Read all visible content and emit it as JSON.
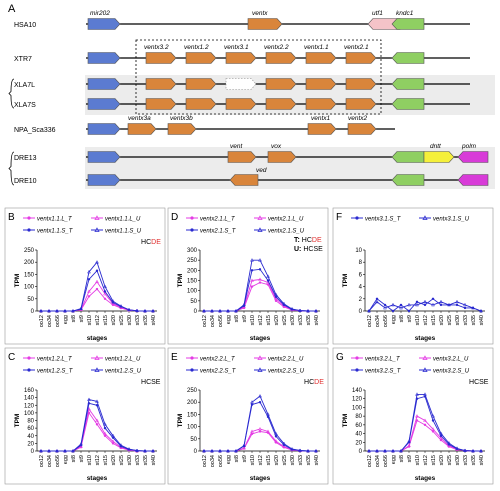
{
  "panel_a": {
    "letter": "A",
    "rows": [
      {
        "label": "HSA10",
        "bracket": false
      },
      {
        "label": "XTR7",
        "bracket": false
      },
      {
        "label": "XLA7L",
        "bracket": true
      },
      {
        "label": "XLA7S",
        "bracket": true
      },
      {
        "label": "NPA_Sca336",
        "bracket": false
      },
      {
        "label": "DRE13",
        "bracket": true
      },
      {
        "label": "DRE10",
        "bracket": true
      }
    ],
    "gene_labels": {
      "mir202": "mir202",
      "ventx": "ventx",
      "utf1": "utf1",
      "kndc1": "kndc1",
      "ventx3_2": "ventx3.2",
      "ventx1_2": "ventx1.2",
      "ventx3_1": "ventx3.1",
      "ventx2_2": "ventx2.2",
      "ventx1_1": "ventx1.1",
      "ventx2_1": "ventx2.1",
      "ventx3a": "ventx3a",
      "ventx3b": "ventx3b",
      "ventx1": "ventx1",
      "ventx2": "ventx2",
      "vent": "vent",
      "vox": "vox",
      "ved": "ved",
      "dntt": "dntt",
      "polm": "polm"
    },
    "colors": {
      "blue": "#5b7bd1",
      "orange": "#d9853b",
      "pink": "#f4c3c8",
      "green": "#8fcf62",
      "yellow": "#f5f03a",
      "magenta": "#d83bd8"
    }
  },
  "common": {
    "ylabel": "TPM",
    "xlabel": "stages",
    "stage_labels": [
      "oo12",
      "oo34",
      "oo56",
      "egg",
      "st8",
      "st9",
      "st10",
      "st12",
      "st15",
      "st20",
      "st25",
      "st30",
      "st33",
      "st35",
      "st40"
    ]
  },
  "chart_data": [
    {
      "type": "line",
      "letter": "B",
      "tag": "HCDE",
      "tag_colors": [
        "#000",
        "#000",
        "#e03030",
        "#e03030"
      ],
      "ylim": [
        0,
        250
      ],
      "yticks": [
        0,
        50,
        100,
        150,
        200,
        250
      ],
      "series": [
        {
          "name": "ventx1.1.L_T",
          "color": "#e43be4",
          "values": [
            0,
            0,
            0,
            0,
            0,
            5,
            60,
            90,
            50,
            25,
            12,
            3,
            1,
            0,
            0
          ]
        },
        {
          "name": "ventx1.1.L_U",
          "color": "#e43be4",
          "values": [
            0,
            0,
            0,
            0,
            0,
            6,
            80,
            120,
            70,
            30,
            15,
            4,
            1,
            0,
            0
          ]
        },
        {
          "name": "ventx1.1.S_T",
          "color": "#2a2ad0",
          "values": [
            0,
            0,
            0,
            0,
            0,
            8,
            130,
            165,
            80,
            35,
            18,
            5,
            1,
            0,
            0
          ]
        },
        {
          "name": "ventx1.1.S_U",
          "color": "#2a2ad0",
          "values": [
            0,
            0,
            0,
            0,
            0,
            10,
            160,
            200,
            100,
            40,
            20,
            5,
            1,
            0,
            0
          ]
        }
      ]
    },
    {
      "type": "line",
      "letter": "D",
      "tag": "",
      "tag_colors": [],
      "ylim": [
        0,
        300
      ],
      "yticks": [
        0,
        50,
        100,
        150,
        200,
        250,
        300
      ],
      "legend_extra": [
        {
          "prefix": "T: ",
          "text": "HCDE",
          "colors": [
            "#000",
            "#000",
            "#e03030",
            "#e03030"
          ]
        },
        {
          "prefix": "U: ",
          "text": "HCSE",
          "colors": [
            "#000",
            "#000",
            "#000",
            "#000"
          ]
        }
      ],
      "series": [
        {
          "name": "ventx2.1.L_T",
          "color": "#e43be4",
          "values": [
            0,
            0,
            0,
            0,
            0,
            15,
            120,
            140,
            130,
            50,
            20,
            5,
            1,
            0,
            0
          ]
        },
        {
          "name": "ventx2.1.L_U",
          "color": "#e43be4",
          "values": [
            0,
            0,
            0,
            0,
            0,
            20,
            150,
            155,
            140,
            60,
            25,
            6,
            2,
            0,
            0
          ]
        },
        {
          "name": "ventx2.1.S_T",
          "color": "#2a2ad0",
          "values": [
            0,
            0,
            0,
            0,
            0,
            25,
            200,
            205,
            150,
            70,
            30,
            8,
            2,
            0,
            0
          ]
        },
        {
          "name": "ventx2.1.S_U",
          "color": "#2a2ad0",
          "values": [
            0,
            0,
            0,
            0,
            0,
            30,
            250,
            250,
            170,
            80,
            35,
            10,
            2,
            0,
            0
          ]
        }
      ]
    },
    {
      "type": "line",
      "letter": "F",
      "tag": "",
      "tag_colors": [],
      "ylim": [
        0,
        10
      ],
      "yticks": [
        0,
        2,
        4,
        6,
        8,
        10
      ],
      "series": [
        {
          "name": "ventx3.1.S_T",
          "color": "#2a2ad0",
          "values": [
            0,
            2,
            1,
            0,
            1,
            0,
            1.5,
            1,
            2,
            1,
            1,
            1,
            0.5,
            0.5,
            0
          ]
        },
        {
          "name": "ventx3.1.S_U",
          "color": "#2a2ad0",
          "values": [
            0,
            1.5,
            0.5,
            1,
            0.5,
            1,
            1,
            1.5,
            1,
            1.5,
            1,
            1.5,
            1,
            0.5,
            0
          ]
        }
      ]
    },
    {
      "type": "line",
      "letter": "C",
      "tag": "HCSE",
      "tag_colors": [
        "#000",
        "#000",
        "#000",
        "#000"
      ],
      "ylim": [
        0,
        160
      ],
      "yticks": [
        0,
        20,
        40,
        60,
        80,
        100,
        120,
        140,
        160
      ],
      "series": [
        {
          "name": "ventx1.2.L_T",
          "color": "#e43be4",
          "values": [
            0,
            0,
            0,
            0,
            0,
            10,
            100,
            70,
            40,
            20,
            8,
            2,
            0,
            0,
            0
          ]
        },
        {
          "name": "ventx1.2.L_U",
          "color": "#e43be4",
          "values": [
            0,
            0,
            0,
            0,
            0,
            12,
            110,
            80,
            45,
            25,
            10,
            3,
            0,
            0,
            0
          ]
        },
        {
          "name": "ventx1.2.S_T",
          "color": "#2a2ad0",
          "values": [
            0,
            0,
            0,
            0,
            0,
            15,
            125,
            120,
            60,
            35,
            12,
            4,
            1,
            0,
            0
          ]
        },
        {
          "name": "ventx1.2.S_U",
          "color": "#2a2ad0",
          "values": [
            0,
            0,
            0,
            0,
            0,
            18,
            135,
            130,
            70,
            40,
            15,
            5,
            1,
            0,
            0
          ]
        }
      ]
    },
    {
      "type": "line",
      "letter": "E",
      "tag": "HCDE",
      "tag_colors": [
        "#000",
        "#000",
        "#e03030",
        "#e03030"
      ],
      "ylim": [
        0,
        250
      ],
      "yticks": [
        0,
        50,
        100,
        150,
        200,
        250
      ],
      "series": [
        {
          "name": "ventx2.2.L_T",
          "color": "#e43be4",
          "values": [
            0,
            0,
            0,
            0,
            0,
            10,
            70,
            80,
            75,
            35,
            15,
            4,
            1,
            0,
            0
          ]
        },
        {
          "name": "ventx2.2.L_U",
          "color": "#e43be4",
          "values": [
            0,
            0,
            0,
            0,
            0,
            12,
            80,
            90,
            80,
            40,
            18,
            5,
            1,
            0,
            0
          ]
        },
        {
          "name": "ventx2.2.S_T",
          "color": "#2a2ad0",
          "values": [
            0,
            0,
            0,
            0,
            0,
            20,
            190,
            200,
            140,
            60,
            25,
            6,
            2,
            0,
            0
          ]
        },
        {
          "name": "ventx2.2.S_U",
          "color": "#2a2ad0",
          "values": [
            0,
            0,
            0,
            0,
            0,
            22,
            200,
            225,
            150,
            70,
            30,
            8,
            2,
            0,
            0
          ]
        }
      ]
    },
    {
      "type": "line",
      "letter": "G",
      "tag": "HCSE",
      "tag_colors": [
        "#000",
        "#000",
        "#000",
        "#000"
      ],
      "ylim": [
        0,
        140
      ],
      "yticks": [
        0,
        20,
        40,
        60,
        80,
        100,
        120,
        140
      ],
      "series": [
        {
          "name": "ventx3.2.L_T",
          "color": "#e43be4",
          "values": [
            0,
            0,
            0,
            0,
            0,
            10,
            70,
            60,
            45,
            25,
            10,
            3,
            1,
            0,
            0
          ]
        },
        {
          "name": "ventx3.2.L_U",
          "color": "#e43be4",
          "values": [
            0,
            0,
            0,
            0,
            0,
            12,
            80,
            70,
            50,
            30,
            12,
            4,
            1,
            0,
            0
          ]
        },
        {
          "name": "ventx3.2.S_T",
          "color": "#2a2ad0",
          "values": [
            0,
            0,
            0,
            0,
            0,
            20,
            120,
            125,
            70,
            35,
            15,
            5,
            1,
            0,
            0
          ]
        },
        {
          "name": "ventx3.2.S_U",
          "color": "#2a2ad0",
          "values": [
            0,
            0,
            0,
            0,
            0,
            22,
            130,
            130,
            80,
            40,
            18,
            6,
            1,
            0,
            0
          ]
        }
      ]
    }
  ]
}
